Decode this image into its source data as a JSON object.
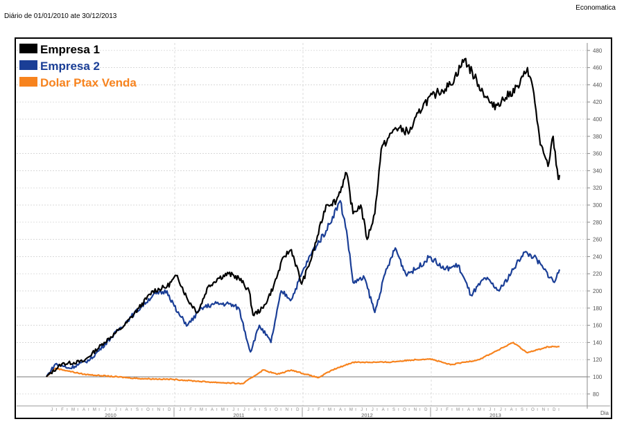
{
  "header": {
    "subtitle": "Diário de 01/01/2010 ate 30/12/2013",
    "source": "Economatica"
  },
  "chart_data": {
    "type": "line",
    "xlabel": "Dia",
    "x_unit": "years since 01/01/2010",
    "ylim": [
      70,
      490
    ],
    "yticks": [
      80,
      100,
      120,
      140,
      160,
      180,
      200,
      220,
      240,
      260,
      280,
      300,
      320,
      340,
      360,
      380,
      400,
      420,
      440,
      460,
      480
    ],
    "baseline": 100,
    "years": [
      "2010",
      "2011",
      "2012",
      "2013"
    ],
    "months": [
      "J",
      "F",
      "M",
      "A",
      "M",
      "J",
      "J",
      "A",
      "S",
      "O",
      "N",
      "D"
    ],
    "legend_position": "top-left",
    "series": [
      {
        "name": "Empresa 1",
        "color": "#000000",
        "points": [
          [
            0,
            100
          ],
          [
            0.12,
            115
          ],
          [
            0.29,
            118
          ],
          [
            0.45,
            140
          ],
          [
            0.61,
            160
          ],
          [
            0.72,
            180
          ],
          [
            0.83,
            200
          ],
          [
            0.94,
            205
          ],
          [
            1.02,
            218
          ],
          [
            1.1,
            190
          ],
          [
            1.18,
            175
          ],
          [
            1.26,
            205
          ],
          [
            1.34,
            215
          ],
          [
            1.42,
            220
          ],
          [
            1.5,
            215
          ],
          [
            1.58,
            200
          ],
          [
            1.61,
            172
          ],
          [
            1.69,
            180
          ],
          [
            1.77,
            205
          ],
          [
            1.85,
            240
          ],
          [
            1.91,
            248
          ],
          [
            1.99,
            208
          ],
          [
            2.07,
            240
          ],
          [
            2.18,
            300
          ],
          [
            2.26,
            305
          ],
          [
            2.34,
            337
          ],
          [
            2.39,
            290
          ],
          [
            2.45,
            300
          ],
          [
            2.5,
            260
          ],
          [
            2.56,
            290
          ],
          [
            2.61,
            365
          ],
          [
            2.72,
            390
          ],
          [
            2.83,
            385
          ],
          [
            2.94,
            418
          ],
          [
            3.04,
            430
          ],
          [
            3.15,
            440
          ],
          [
            3.26,
            470
          ],
          [
            3.37,
            440
          ],
          [
            3.48,
            414
          ],
          [
            3.58,
            425
          ],
          [
            3.69,
            440
          ],
          [
            3.75,
            460
          ],
          [
            3.8,
            430
          ],
          [
            3.85,
            370
          ],
          [
            3.91,
            345
          ],
          [
            3.95,
            380
          ],
          [
            3.99,
            330
          ],
          [
            4.0,
            335
          ]
        ]
      },
      {
        "name": "Empresa 2",
        "color": "#1a3e96",
        "points": [
          [
            0,
            100
          ],
          [
            0.07,
            115
          ],
          [
            0.18,
            110
          ],
          [
            0.34,
            120
          ],
          [
            0.5,
            145
          ],
          [
            0.66,
            170
          ],
          [
            0.83,
            195
          ],
          [
            0.94,
            200
          ],
          [
            1.02,
            175
          ],
          [
            1.1,
            160
          ],
          [
            1.21,
            180
          ],
          [
            1.31,
            185
          ],
          [
            1.42,
            185
          ],
          [
            1.5,
            180
          ],
          [
            1.59,
            129
          ],
          [
            1.66,
            160
          ],
          [
            1.75,
            140
          ],
          [
            1.83,
            200
          ],
          [
            1.91,
            190
          ],
          [
            1.99,
            220
          ],
          [
            2.07,
            245
          ],
          [
            2.18,
            270
          ],
          [
            2.29,
            305
          ],
          [
            2.34,
            270
          ],
          [
            2.39,
            210
          ],
          [
            2.48,
            215
          ],
          [
            2.56,
            175
          ],
          [
            2.64,
            220
          ],
          [
            2.72,
            250
          ],
          [
            2.8,
            220
          ],
          [
            2.88,
            225
          ],
          [
            2.99,
            240
          ],
          [
            3.1,
            225
          ],
          [
            3.21,
            230
          ],
          [
            3.31,
            195
          ],
          [
            3.42,
            215
          ],
          [
            3.53,
            200
          ],
          [
            3.64,
            225
          ],
          [
            3.72,
            245
          ],
          [
            3.8,
            240
          ],
          [
            3.88,
            225
          ],
          [
            3.96,
            210
          ],
          [
            4.0,
            225
          ]
        ]
      },
      {
        "name": "Dolar Ptax Venda",
        "color": "#f7831e",
        "points": [
          [
            0,
            100
          ],
          [
            0.07,
            110
          ],
          [
            0.29,
            103
          ],
          [
            0.72,
            98
          ],
          [
            0.99,
            97
          ],
          [
            1.26,
            94
          ],
          [
            1.53,
            92
          ],
          [
            1.69,
            108
          ],
          [
            1.8,
            103
          ],
          [
            1.91,
            108
          ],
          [
            2.02,
            103
          ],
          [
            2.12,
            99
          ],
          [
            2.23,
            108
          ],
          [
            2.39,
            117
          ],
          [
            2.66,
            117
          ],
          [
            2.88,
            120
          ],
          [
            2.99,
            121
          ],
          [
            3.15,
            114
          ],
          [
            3.37,
            120
          ],
          [
            3.48,
            128
          ],
          [
            3.64,
            140
          ],
          [
            3.75,
            128
          ],
          [
            3.91,
            135
          ],
          [
            4.0,
            135
          ]
        ]
      }
    ]
  }
}
